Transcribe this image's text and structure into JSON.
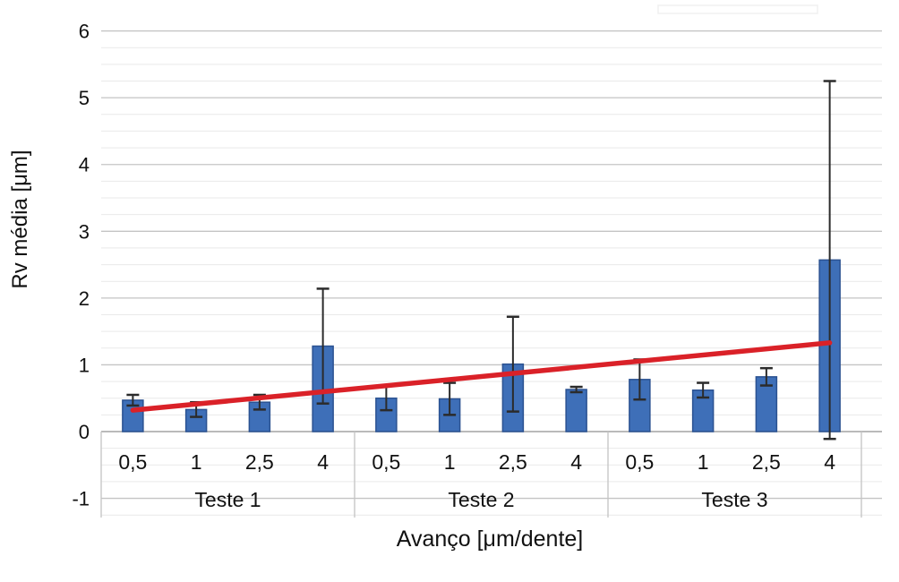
{
  "chart_data": {
    "type": "bar",
    "title": "",
    "xlabel": "Avanço [μm/dente]",
    "ylabel": "Rv média [μm]",
    "ylim": [
      -1.25,
      6
    ],
    "y_major_ticks": [
      6,
      5,
      4,
      3,
      2,
      1,
      0,
      -1
    ],
    "y_tick_labels": [
      "6",
      "5",
      "4",
      "3",
      "2",
      "1",
      "0",
      "-1"
    ],
    "y_minor_step": 0.25,
    "grid": "major and minor horizontal gridlines",
    "legend": "none",
    "categories_per_group": [
      "0,5",
      "1",
      "2,5",
      "4"
    ],
    "groups": [
      {
        "label": "Teste 1",
        "categories": [
          "0,5",
          "1",
          "2,5",
          "4"
        ],
        "values": [
          0.47,
          0.33,
          0.44,
          1.28
        ],
        "errors": [
          0.08,
          0.11,
          0.11,
          0.86
        ]
      },
      {
        "label": "Teste 2",
        "categories": [
          "0,5",
          "1",
          "2,5",
          "4"
        ],
        "values": [
          0.5,
          0.49,
          1.01,
          0.63
        ],
        "errors": [
          0.18,
          0.24,
          0.71,
          0.04
        ]
      },
      {
        "label": "Teste 3",
        "categories": [
          "0,5",
          "1",
          "2,5",
          "4"
        ],
        "values": [
          0.78,
          0.62,
          0.82,
          2.57
        ],
        "errors": [
          0.3,
          0.11,
          0.13,
          2.68
        ]
      }
    ],
    "trendline": {
      "description": "linear trend across all 12 bars",
      "start_value": 0.32,
      "end_value": 1.33
    },
    "colors": {
      "bar_fill": "#3e6fb8",
      "bar_border": "#2b5291",
      "error_bar": "#2b2b2b",
      "trendline": "#da2128",
      "gridline_major": "#c4c4c4",
      "gridline_minor": "#e9e9e9",
      "axis_line": "#a3a3a3",
      "text": "#111111",
      "background": "#ffffff"
    }
  }
}
